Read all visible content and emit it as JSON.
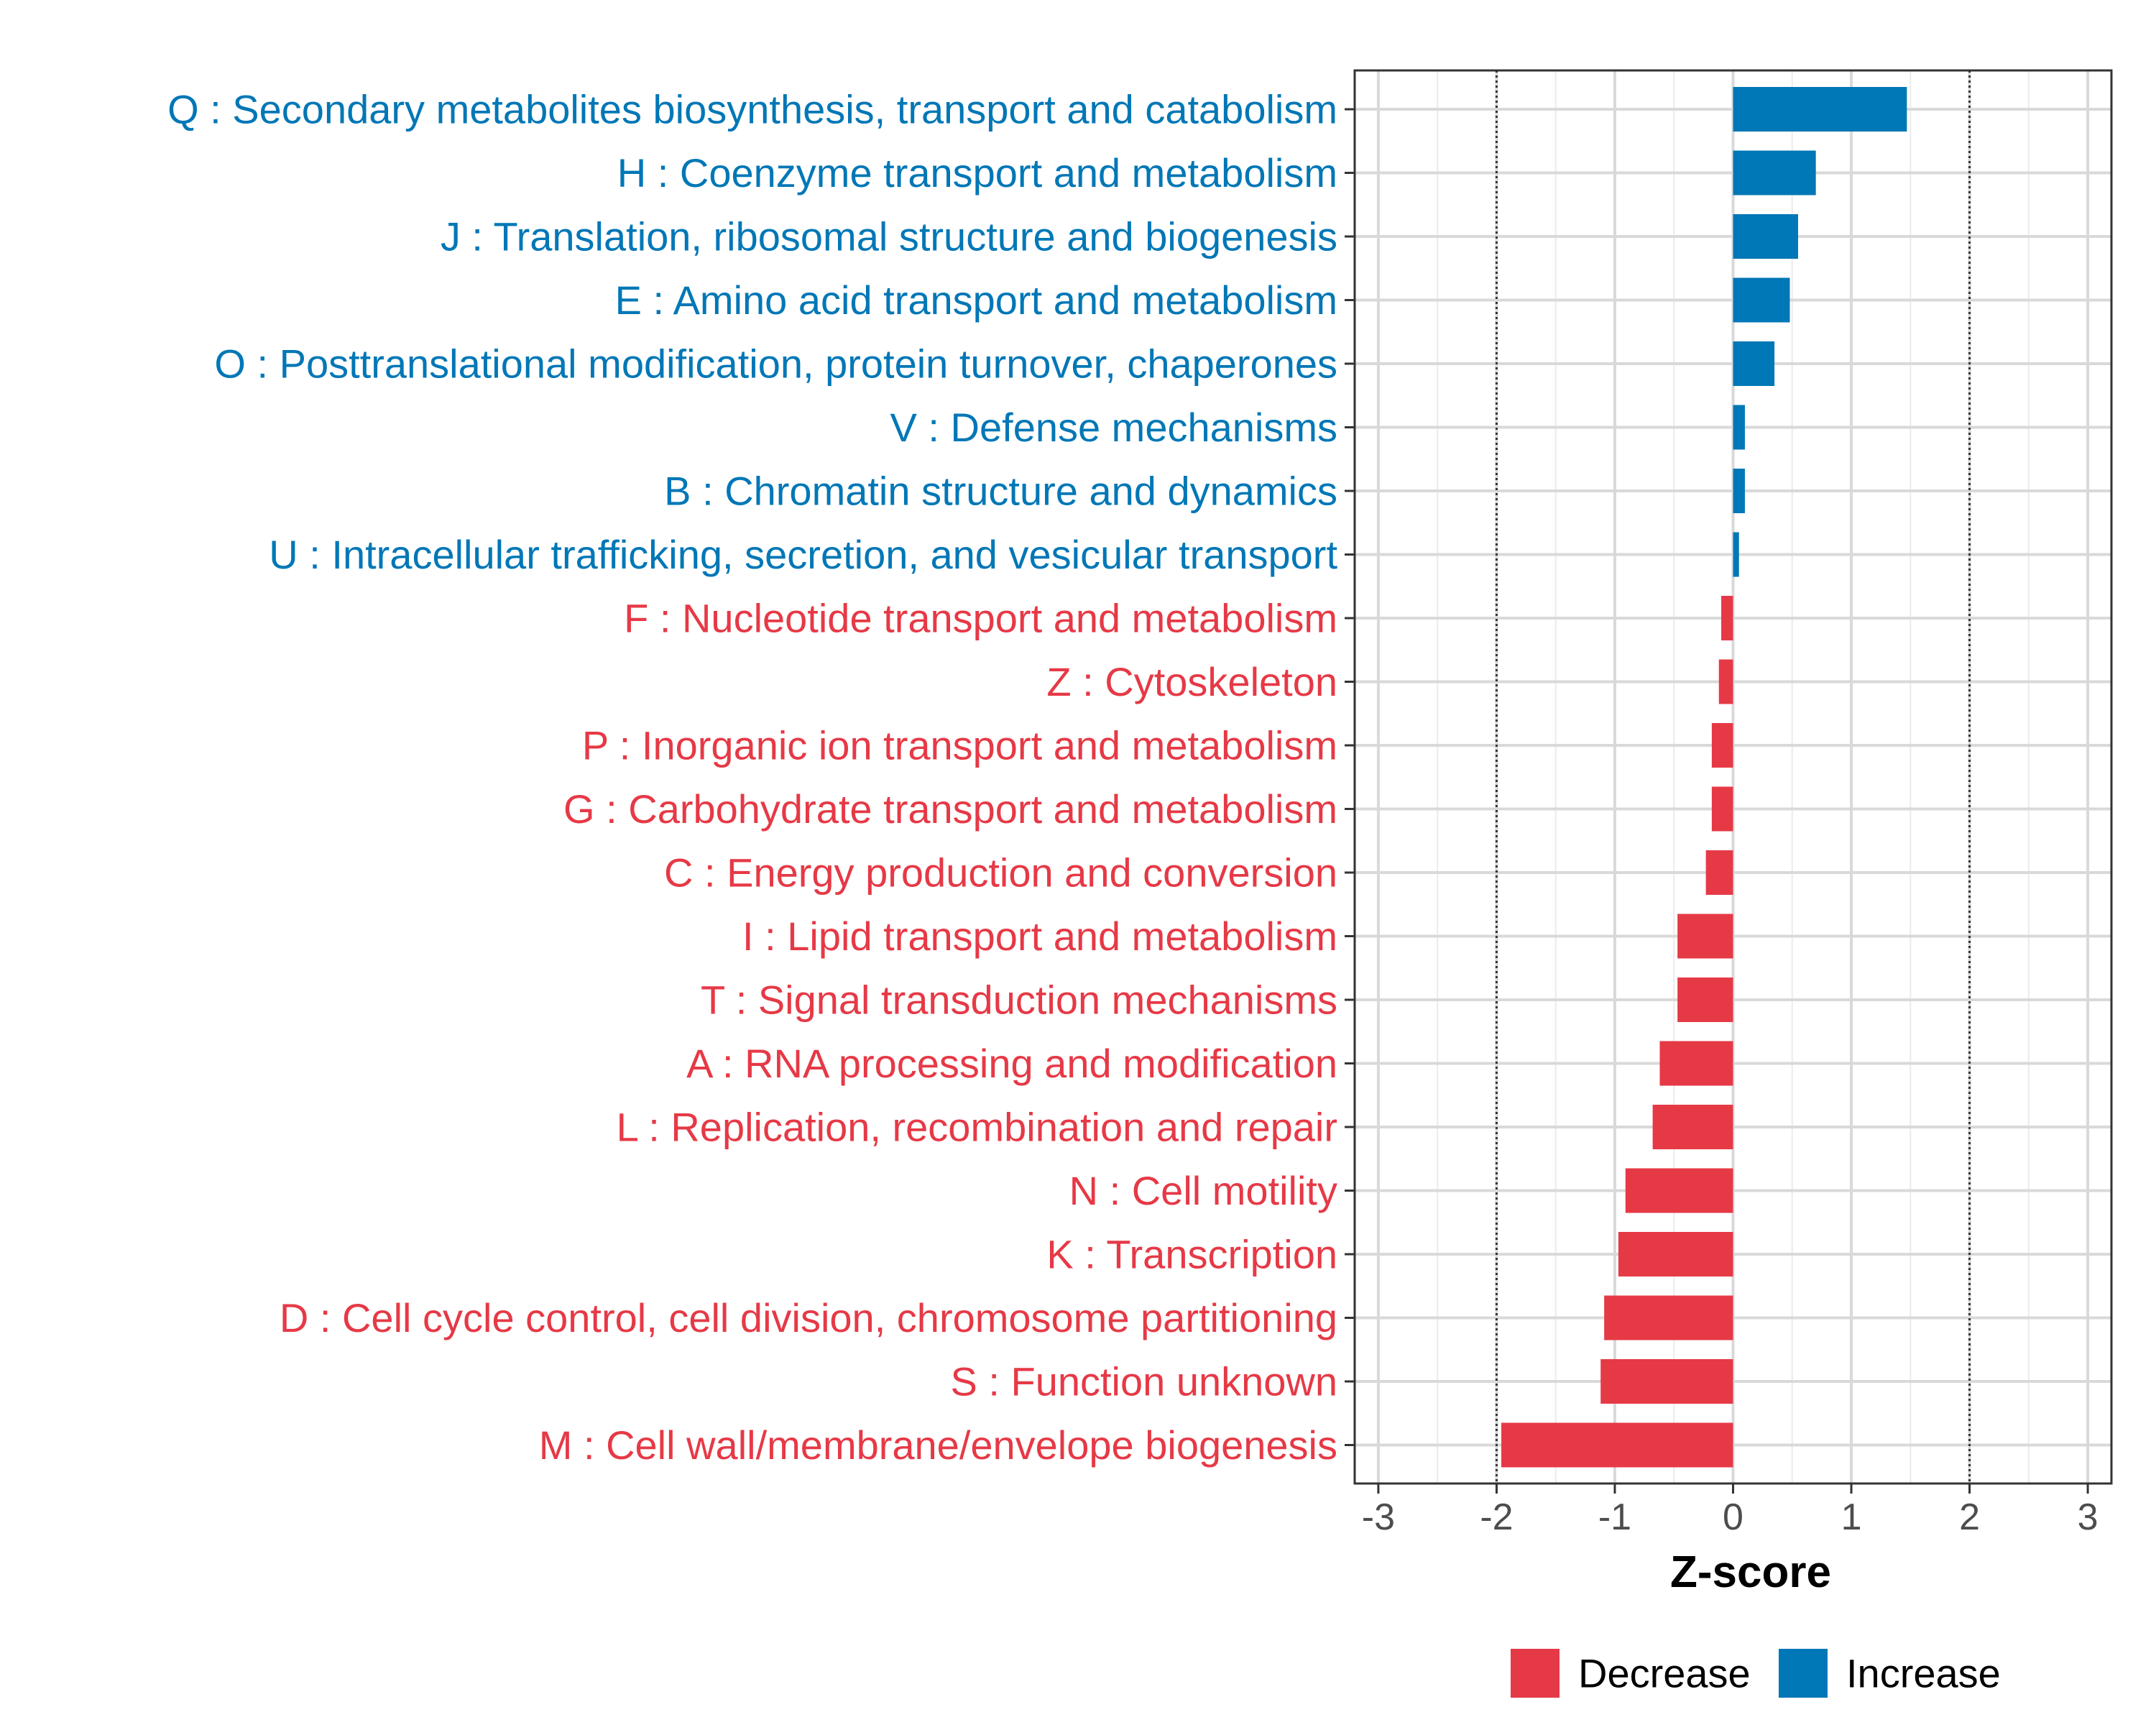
{
  "chart_data": {
    "type": "bar",
    "orientation": "horizontal",
    "title": "",
    "xlabel": "Z-score",
    "ylabel": "",
    "xlim": [
      -3.2,
      3.2
    ],
    "x_ticks": [
      -3,
      -2,
      -1,
      0,
      1,
      2,
      3
    ],
    "x_tick_labels": [
      "-3",
      "-2",
      "-1",
      "0",
      "1",
      "2",
      "3"
    ],
    "reference_lines": [
      -2,
      2
    ],
    "grid": true,
    "legend_position": "bottom",
    "legend": [
      {
        "label": "Decrease",
        "color": "#E63946"
      },
      {
        "label": "Increase",
        "color": "#0077B6"
      }
    ],
    "categories": [
      {
        "label": "Q : Secondary metabolites biosynthesis, transport and catabolism",
        "value": 1.47,
        "group": "Increase"
      },
      {
        "label": "H : Coenzyme transport and metabolism",
        "value": 0.7,
        "group": "Increase"
      },
      {
        "label": "J : Translation, ribosomal structure and biogenesis",
        "value": 0.55,
        "group": "Increase"
      },
      {
        "label": "E : Amino acid transport and metabolism",
        "value": 0.48,
        "group": "Increase"
      },
      {
        "label": "O : Posttranslational modification, protein turnover, chaperones",
        "value": 0.35,
        "group": "Increase"
      },
      {
        "label": "V : Defense mechanisms",
        "value": 0.1,
        "group": "Increase"
      },
      {
        "label": "B : Chromatin structure and dynamics",
        "value": 0.1,
        "group": "Increase"
      },
      {
        "label": "U : Intracellular trafficking, secretion, and vesicular transport",
        "value": 0.05,
        "group": "Increase"
      },
      {
        "label": "F : Nucleotide transport and metabolism",
        "value": -0.1,
        "group": "Decrease"
      },
      {
        "label": "Z : Cytoskeleton",
        "value": -0.12,
        "group": "Decrease"
      },
      {
        "label": "P : Inorganic ion transport and metabolism",
        "value": -0.18,
        "group": "Decrease"
      },
      {
        "label": "G : Carbohydrate transport and metabolism",
        "value": -0.18,
        "group": "Decrease"
      },
      {
        "label": "C : Energy production and conversion",
        "value": -0.23,
        "group": "Decrease"
      },
      {
        "label": "I : Lipid transport and metabolism",
        "value": -0.47,
        "group": "Decrease"
      },
      {
        "label": "T : Signal transduction mechanisms",
        "value": -0.47,
        "group": "Decrease"
      },
      {
        "label": "A : RNA processing and modification",
        "value": -0.62,
        "group": "Decrease"
      },
      {
        "label": "L : Replication, recombination and repair",
        "value": -0.68,
        "group": "Decrease"
      },
      {
        "label": "N : Cell motility",
        "value": -0.91,
        "group": "Decrease"
      },
      {
        "label": "K : Transcription",
        "value": -0.97,
        "group": "Decrease"
      },
      {
        "label": "D : Cell cycle control, cell division, chromosome partitioning",
        "value": -1.09,
        "group": "Decrease"
      },
      {
        "label": "S : Function unknown",
        "value": -1.12,
        "group": "Decrease"
      },
      {
        "label": "M : Cell wall/membrane/envelope biogenesis",
        "value": -1.96,
        "group": "Decrease"
      }
    ]
  }
}
